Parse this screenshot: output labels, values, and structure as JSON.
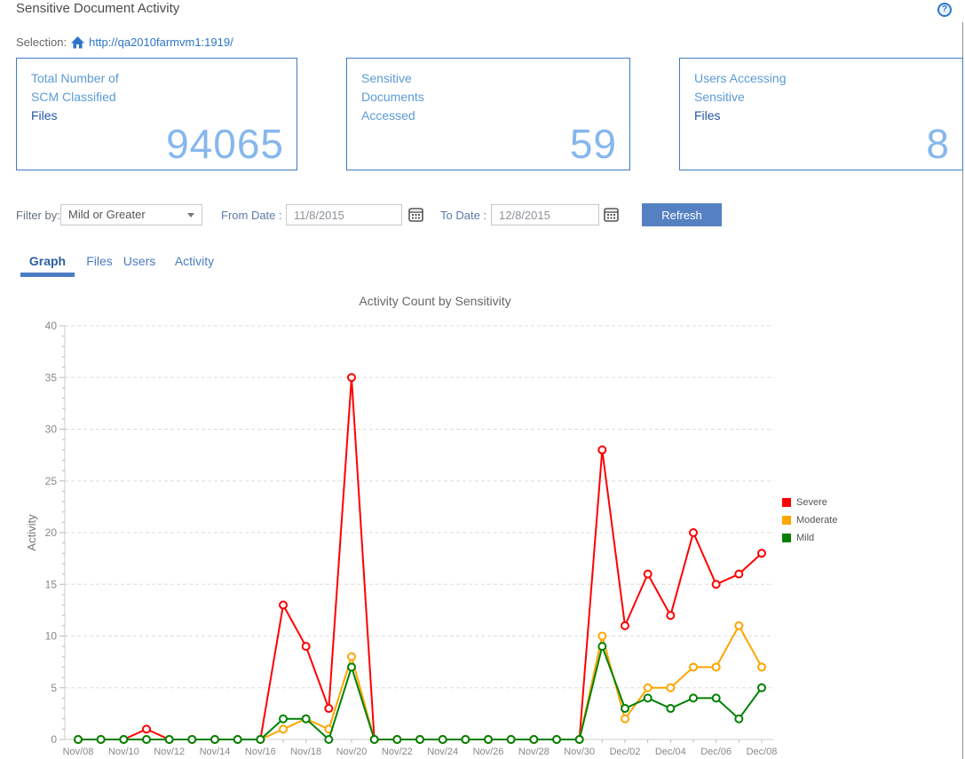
{
  "page": {
    "title": "Sensitive Document Activity",
    "help_label": "?"
  },
  "selection": {
    "label": "Selection:",
    "url": "http://qa2010farmvm1:1919/"
  },
  "cards": [
    {
      "lines": [
        "Total Number of",
        "SCM Classified",
        "Files"
      ],
      "value": "94065"
    },
    {
      "lines": [
        "Sensitive",
        "Documents",
        "Accessed"
      ],
      "value": "59"
    },
    {
      "lines": [
        "Users Accessing",
        "Sensitive",
        "Files"
      ],
      "value": "8"
    }
  ],
  "filters": {
    "filter_by_label": "Filter by:",
    "filter_value": "Mild or Greater",
    "from_label": "From Date :",
    "from_value": "11/8/2015",
    "to_label": "To Date :",
    "to_value": "12/8/2015",
    "refresh_label": "Refresh"
  },
  "tabs": [
    {
      "label": "Graph"
    },
    {
      "label": "Files"
    },
    {
      "label": "Users"
    },
    {
      "label": "Activity"
    }
  ],
  "active_tab": "Graph",
  "colors": {
    "accent_blue": "#2e75c8",
    "card_border": "#3d7bc4",
    "card_label": "#5b9bd5",
    "card_label_dark": "#2456a4",
    "card_value": "#86b7ed",
    "refresh_bg": "#5581c2",
    "tab_active": "#2e5fa3",
    "severe": "#FF0000",
    "moderate": "#FFA500",
    "mild": "#008000"
  },
  "chart_data": {
    "type": "line",
    "title": "Activity Count by Sensitivity",
    "xlabel": "",
    "ylabel": "Activity",
    "ylim": [
      0,
      40
    ],
    "y_tick_step": 5,
    "x_tick_every": 2,
    "grid": true,
    "legend_position": "right",
    "legend": [
      "Severe",
      "Moderate",
      "Mild"
    ],
    "categories": [
      "Nov/08",
      "Nov/09",
      "Nov/10",
      "Nov/11",
      "Nov/12",
      "Nov/13",
      "Nov/14",
      "Nov/15",
      "Nov/16",
      "Nov/17",
      "Nov/18",
      "Nov/19",
      "Nov/20",
      "Nov/21",
      "Nov/22",
      "Nov/23",
      "Nov/24",
      "Nov/25",
      "Nov/26",
      "Nov/27",
      "Nov/28",
      "Nov/29",
      "Nov/30",
      "Dec/01",
      "Dec/02",
      "Dec/03",
      "Dec/04",
      "Dec/05",
      "Dec/06",
      "Dec/07",
      "Dec/08"
    ],
    "series": [
      {
        "name": "Severe",
        "color": "#FF0000",
        "values": [
          0,
          0,
          0,
          1,
          0,
          0,
          0,
          0,
          0,
          13,
          9,
          3,
          35,
          0,
          0,
          0,
          0,
          0,
          0,
          0,
          0,
          0,
          0,
          28,
          11,
          16,
          12,
          20,
          15,
          16,
          18
        ]
      },
      {
        "name": "Moderate",
        "color": "#FFA500",
        "values": [
          0,
          0,
          0,
          0,
          0,
          0,
          0,
          0,
          0,
          1,
          2,
          1,
          8,
          0,
          0,
          0,
          0,
          0,
          0,
          0,
          0,
          0,
          0,
          10,
          2,
          5,
          5,
          7,
          7,
          11,
          7
        ]
      },
      {
        "name": "Mild",
        "color": "#008000",
        "values": [
          0,
          0,
          0,
          0,
          0,
          0,
          0,
          0,
          0,
          2,
          2,
          0,
          7,
          0,
          0,
          0,
          0,
          0,
          0,
          0,
          0,
          0,
          0,
          9,
          3,
          4,
          3,
          4,
          4,
          2,
          5
        ]
      }
    ]
  }
}
